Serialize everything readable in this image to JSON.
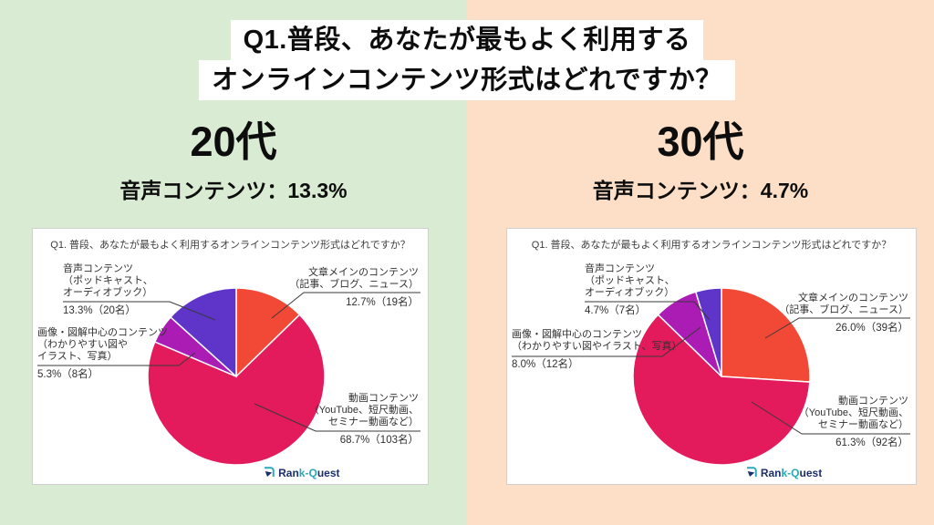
{
  "background": {
    "left_color": "#d9ecd3",
    "right_color": "#fcdfc6"
  },
  "title": {
    "line1": "Q1.普段、あなたが最もよく利用する",
    "line2": "オンラインコンテンツ形式はどれですか？"
  },
  "logo": {
    "part1": "Ran",
    "part2": "k-Q",
    "part3": "uest"
  },
  "panels": [
    {
      "heading": "20代",
      "subheading": "音声コンテンツ：13.3%",
      "chart_title": "Q1. 普段、あなたが最もよく利用するオンラインコンテンツ形式はどれですか？",
      "callouts": {
        "audio": {
          "lines": [
            "音声コンテンツ",
            "（ポッドキャスト、",
            "オーディオブック）"
          ],
          "value": "13.3%（20名）"
        },
        "text": {
          "lines": [
            "文章メインのコンテンツ",
            "（記事、ブログ、ニュース）"
          ],
          "value": "12.7%（19名）"
        },
        "image": {
          "lines": [
            "画像・図解中心のコンテンツ",
            "（わかりやすい図や",
            "イラスト、写真）"
          ],
          "value": "5.3%（8名）"
        },
        "video": {
          "lines": [
            "動画コンテンツ",
            "（YouTube、短尺動画、",
            "セミナー動画など）"
          ],
          "value": "68.7%（103名）"
        }
      }
    },
    {
      "heading": "30代",
      "subheading": "音声コンテンツ：4.7%",
      "chart_title": "Q1. 普段、あなたが最もよく利用するオンラインコンテンツ形式はどれですか？",
      "callouts": {
        "audio": {
          "lines": [
            "音声コンテンツ",
            "（ポッドキャスト、",
            "オーディオブック）"
          ],
          "value": "4.7%（7名）"
        },
        "text": {
          "lines": [
            "文章メインのコンテンツ",
            "（記事、ブログ、ニュース）"
          ],
          "value": "26.0%（39名）"
        },
        "image": {
          "lines": [
            "画像・図解中心のコンテンツ",
            "（わかりやすい図やイラスト、写真）"
          ],
          "value": "8.0%（12名）"
        },
        "video": {
          "lines": [
            "動画コンテンツ",
            "（YouTube、短尺動画、",
            "セミナー動画など）"
          ],
          "value": "61.3%（92名）"
        }
      }
    }
  ],
  "chart_data": [
    {
      "type": "pie",
      "group": "20代",
      "title": "Q1. 普段、あなたが最もよく利用するオンラインコンテンツ形式はどれですか？",
      "labels": [
        "文章メインのコンテンツ（記事、ブログ、ニュース）",
        "動画コンテンツ（YouTube、短尺動画、セミナー動画など）",
        "画像・図解中心のコンテンツ（わかりやすい図やイラスト、写真）",
        "音声コンテンツ（ポッドキャスト、オーディオブック）"
      ],
      "values": [
        12.7,
        68.7,
        5.3,
        13.3
      ],
      "counts": [
        19,
        103,
        8,
        20
      ],
      "colors": [
        "#f24936",
        "#e31a5c",
        "#ab1cb5",
        "#5e34c9"
      ],
      "start_angle_deg": 0,
      "direction": "clockwise",
      "legend": "none"
    },
    {
      "type": "pie",
      "group": "30代",
      "title": "Q1. 普段、あなたが最もよく利用するオンラインコンテンツ形式はどれですか？",
      "labels": [
        "文章メインのコンテンツ（記事、ブログ、ニュース）",
        "動画コンテンツ（YouTube、短尺動画、セミナー動画など）",
        "画像・図解中心のコンテンツ（わかりやすい図やイラスト、写真）",
        "音声コンテンツ（ポッドキャスト、オーディオブック）"
      ],
      "values": [
        26.0,
        61.3,
        8.0,
        4.7
      ],
      "counts": [
        39,
        92,
        12,
        7
      ],
      "colors": [
        "#f24936",
        "#e31a5c",
        "#ab1cb5",
        "#5e34c9"
      ],
      "start_angle_deg": 0,
      "direction": "clockwise",
      "legend": "none"
    }
  ]
}
